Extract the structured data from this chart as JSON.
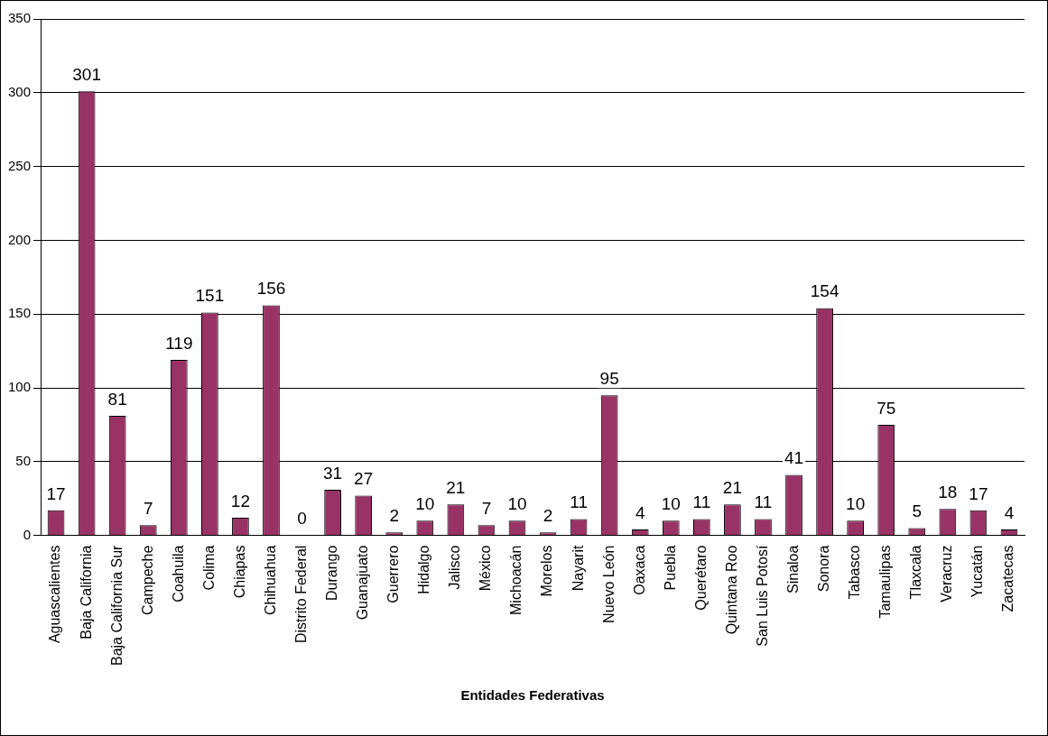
{
  "chart_data": {
    "type": "bar",
    "xlabel": "Entidades Federativas",
    "categories": [
      "Aguascalientes",
      "Baja California",
      "Baja California Sur",
      "Campeche",
      "Coahuila",
      "Colima",
      "Chiapas",
      "Chihuahua",
      "Distrito Federal",
      "Durango",
      "Guanajuato",
      "Guerrero",
      "Hidalgo",
      "Jalisco",
      "México",
      "Michoacán",
      "Morelos",
      "Nayarit",
      "Nuevo León",
      "Oaxaca",
      "Puebla",
      "Querétaro",
      "Quintana Roo",
      "San Luis Potosí",
      "Sinaloa",
      "Sonora",
      "Tabasco",
      "Tamaulipas",
      "Tlaxcala",
      "Veracruz",
      "Yucatán",
      "Zacatecas"
    ],
    "values": [
      17,
      301,
      81,
      7,
      119,
      151,
      12,
      156,
      0,
      31,
      27,
      2,
      10,
      21,
      7,
      10,
      2,
      11,
      95,
      4,
      10,
      11,
      21,
      11,
      41,
      154,
      10,
      75,
      5,
      18,
      17,
      4
    ],
    "color": "#993366",
    "ylim": [
      0,
      350
    ],
    "yticks": [
      0,
      50,
      100,
      150,
      200,
      250,
      300,
      350
    ],
    "grid": "y",
    "legend": false,
    "data_labels": true
  }
}
